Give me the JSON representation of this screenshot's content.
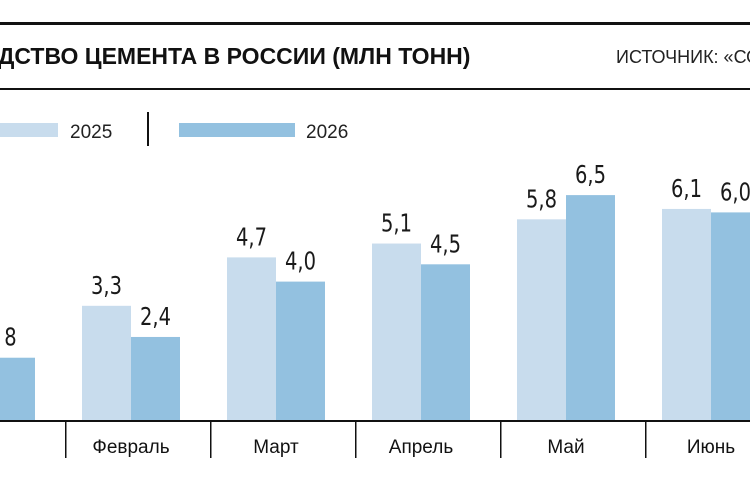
{
  "header": {
    "title": "ДСТВО ЦЕМЕНТА В РОССИИ (МЛН ТОНН)",
    "source": "ИСТОЧНИК: «СО"
  },
  "colors": {
    "series_2025": "#c8dced",
    "series_2026": "#93c1e0",
    "rule": "#111111"
  },
  "chart_data": {
    "type": "bar",
    "title": "",
    "categories": [
      "ь",
      "Февраль",
      "Март",
      "Апрель",
      "Май",
      "Июнь"
    ],
    "series": [
      {
        "name": "2025",
        "values": [
          null,
          3.3,
          4.7,
          5.1,
          5.8,
          6.1
        ]
      },
      {
        "name": "2026",
        "values": [
          1.8,
          2.4,
          4.0,
          4.5,
          6.5,
          6.0
        ]
      }
    ],
    "value_labels": [
      [
        "",
        "3,3",
        "4,7",
        "5,1",
        "5,8",
        "6,1"
      ],
      [
        "8",
        "2,4",
        "4,0",
        "4,5",
        "6,5",
        "6,0"
      ]
    ],
    "legend": [
      "2025",
      "2026"
    ],
    "legend_position": "top-left",
    "ylim": [
      0,
      8
    ],
    "grid": false,
    "xlabel": "",
    "ylabel": ""
  }
}
